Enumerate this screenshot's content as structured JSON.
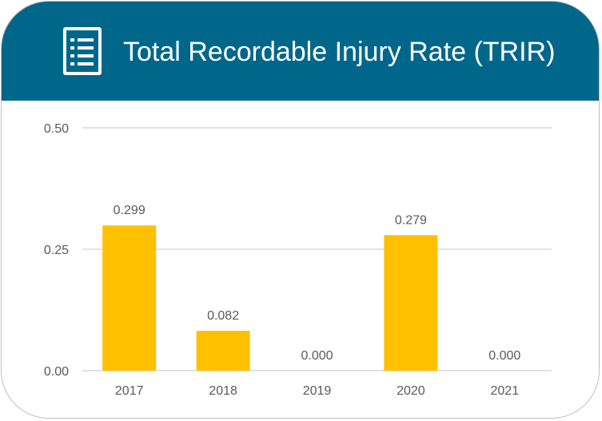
{
  "header": {
    "title": "Total Recordable Injury Rate (TRIR)",
    "icon": "checklist-document-icon",
    "background_color": "#00678b",
    "text_color": "#ffffff"
  },
  "chart_data": {
    "type": "bar",
    "title": "Total Recordable Injury Rate (TRIR)",
    "categories": [
      "2017",
      "2018",
      "2019",
      "2020",
      "2021"
    ],
    "values": [
      0.299,
      0.082,
      0.0,
      0.279,
      0.0
    ],
    "value_labels": [
      "0.299",
      "0.082",
      "0.000",
      "0.279",
      "0.000"
    ],
    "ylim": [
      0,
      0.5
    ],
    "yticks": [
      0.0,
      0.25,
      0.5
    ],
    "ytick_labels": [
      "0.00",
      "0.25",
      "0.50"
    ],
    "xlabel": "",
    "ylabel": "",
    "grid": true,
    "legend": "none",
    "bar_color": "#ffc000",
    "gridline_color": "#d9d9d9",
    "label_color": "#595959"
  }
}
